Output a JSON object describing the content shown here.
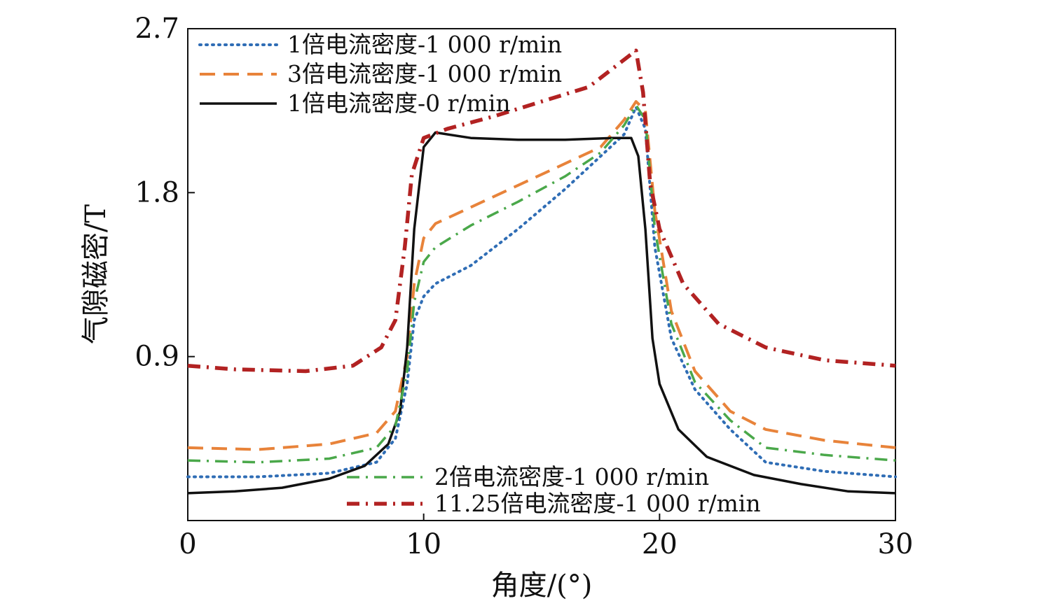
{
  "chart_data": {
    "type": "line",
    "xlabel": "角度/(°)",
    "ylabel": "气隙磁密/T",
    "xlim": [
      0,
      30
    ],
    "ylim": [
      0,
      2.7
    ],
    "xticks": [
      "0",
      "10",
      "20",
      "30"
    ],
    "yticks": [
      "0.9",
      "1.8",
      "2.7"
    ],
    "grid": false,
    "legend_placement": "top-left and bottom-center",
    "series": [
      {
        "name": "1倍电流密度-1 000 r/min",
        "color": "#2f6db5",
        "dash": "dotted",
        "x": [
          0,
          3,
          6,
          8,
          8.8,
          9.3,
          9.6,
          10,
          10.5,
          12,
          14,
          16,
          17.5,
          18.5,
          19,
          19.4,
          19.8,
          20.5,
          21.5,
          23,
          24.5,
          27,
          30
        ],
        "y": [
          0.24,
          0.24,
          0.26,
          0.32,
          0.45,
          0.75,
          1.1,
          1.23,
          1.3,
          1.4,
          1.6,
          1.82,
          2.0,
          2.12,
          2.27,
          2.15,
          1.5,
          1.0,
          0.72,
          0.5,
          0.32,
          0.27,
          0.24
        ]
      },
      {
        "name": "3倍电流密度-1 000 r/min",
        "color": "#e8833a",
        "dash": "dashed",
        "x": [
          0,
          3,
          6,
          8,
          8.8,
          9.3,
          9.6,
          10,
          10.5,
          12,
          14,
          16,
          17.5,
          18.5,
          19,
          19.4,
          19.8,
          20.5,
          21.5,
          23,
          24.5,
          27,
          30
        ],
        "y": [
          0.4,
          0.39,
          0.42,
          0.48,
          0.6,
          0.9,
          1.3,
          1.55,
          1.63,
          1.72,
          1.84,
          1.96,
          2.05,
          2.2,
          2.3,
          2.25,
          1.7,
          1.15,
          0.82,
          0.6,
          0.5,
          0.44,
          0.4
        ]
      },
      {
        "name": "1倍电流密度-0 r/min",
        "color": "#111111",
        "dash": "solid",
        "x": [
          0,
          2,
          4,
          6,
          7.5,
          8.5,
          9,
          9.3,
          9.6,
          10,
          10.5,
          12,
          14,
          16,
          18,
          18.8,
          19.1,
          19.4,
          19.7,
          20,
          20.8,
          22,
          24,
          26,
          28,
          30
        ],
        "y": [
          0.15,
          0.16,
          0.18,
          0.23,
          0.3,
          0.42,
          0.6,
          0.95,
          1.6,
          2.05,
          2.13,
          2.1,
          2.09,
          2.09,
          2.1,
          2.1,
          2.0,
          1.6,
          1.0,
          0.75,
          0.5,
          0.35,
          0.25,
          0.2,
          0.16,
          0.15
        ]
      },
      {
        "name": "2倍电流密度-1 000 r/min",
        "color": "#4aa84a",
        "dash": "dashdot",
        "x": [
          0,
          3,
          6,
          8,
          8.8,
          9.3,
          9.6,
          10,
          10.5,
          12,
          14,
          16,
          17.5,
          18.5,
          19,
          19.4,
          19.8,
          20.5,
          21.5,
          23,
          24.5,
          27,
          30
        ],
        "y": [
          0.33,
          0.32,
          0.34,
          0.4,
          0.52,
          0.82,
          1.2,
          1.42,
          1.5,
          1.62,
          1.75,
          1.89,
          2.02,
          2.17,
          2.28,
          2.2,
          1.6,
          1.08,
          0.76,
          0.55,
          0.4,
          0.36,
          0.33
        ]
      },
      {
        "name": "11.25倍电流密度-1 000 r/min",
        "color": "#b22222",
        "dash": "dashdot",
        "x": [
          0,
          2,
          5,
          7,
          8.2,
          8.8,
          9.2,
          9.5,
          10,
          11,
          13,
          15,
          17,
          18.5,
          19,
          19.3,
          19.6,
          20,
          21,
          22.5,
          24.5,
          27,
          30
        ],
        "y": [
          0.85,
          0.83,
          0.82,
          0.85,
          0.95,
          1.1,
          1.5,
          1.9,
          2.1,
          2.15,
          2.22,
          2.3,
          2.38,
          2.53,
          2.58,
          2.35,
          1.85,
          1.6,
          1.3,
          1.08,
          0.95,
          0.88,
          0.85
        ]
      }
    ]
  }
}
